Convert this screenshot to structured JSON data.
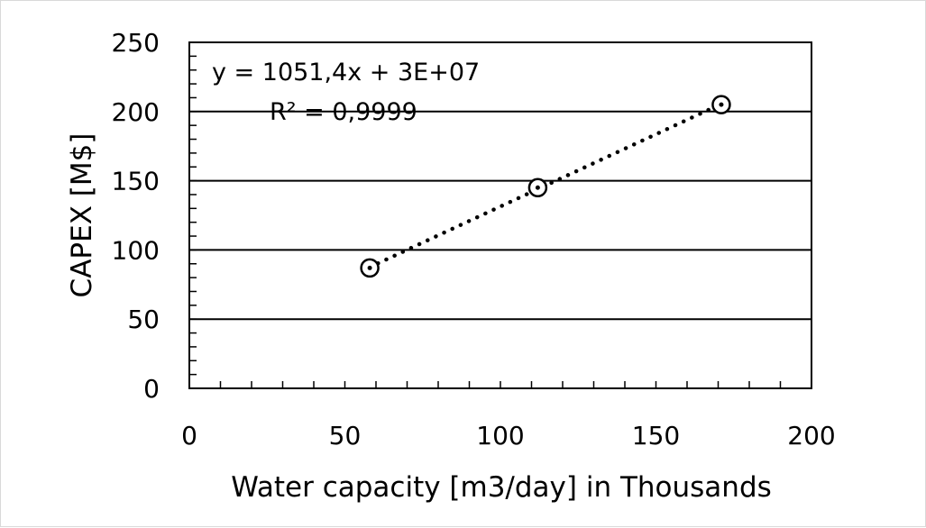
{
  "chart_data": {
    "type": "scatter",
    "title": "",
    "xlabel": "Water capacity [m3/day] in Thousands",
    "ylabel": "CAPEX [M$]",
    "xlim": [
      0,
      200
    ],
    "ylim": [
      0,
      250
    ],
    "x_ticks": [
      0,
      50,
      100,
      150,
      200
    ],
    "y_ticks": [
      0,
      50,
      100,
      150,
      200,
      250
    ],
    "x_tick_labels": [
      "0",
      "50",
      "100",
      "150",
      "200"
    ],
    "y_tick_labels": [
      "0",
      "50",
      "100",
      "150",
      "200",
      "250"
    ],
    "grid": "horizontal major lines",
    "legend": "none",
    "series": [
      {
        "points": [
          {
            "x": 58,
            "y": 87
          },
          {
            "x": 112,
            "y": 145
          },
          {
            "x": 171,
            "y": 205
          }
        ],
        "marker": "circle with dot",
        "color": "#000000"
      }
    ],
    "trendline": {
      "type": "linear",
      "style": "dotted",
      "x_start": 58,
      "x_end": 171,
      "equation": "y = 1051,4x + 3E+07",
      "r_squared": "R² = 0,9999"
    }
  }
}
